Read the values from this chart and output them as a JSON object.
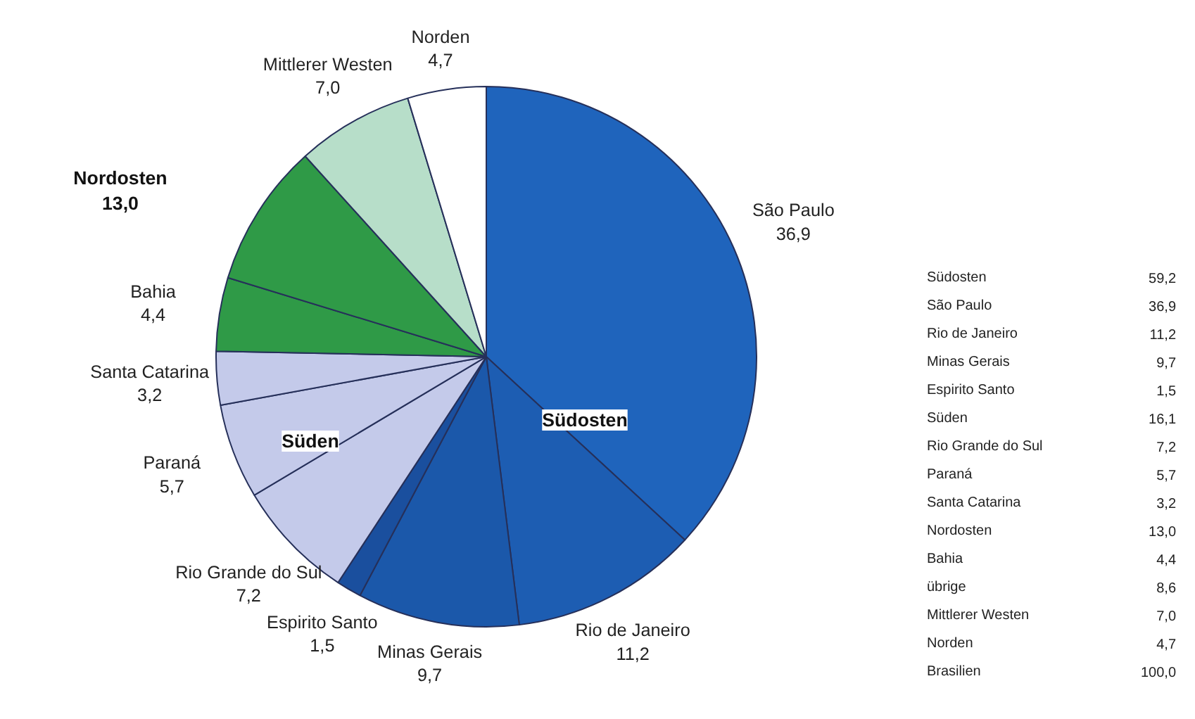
{
  "chart_data": [
    {
      "type": "pie",
      "categories": [
        "São Paulo",
        "Rio de Janeiro",
        "Minas Gerais",
        "Espirito Santo",
        "Rio Grande do Sul",
        "Paraná",
        "Santa Catarina",
        "Bahia",
        null,
        "Mittlerer Westen",
        "Norden"
      ],
      "values": [
        36.9,
        11.2,
        9.7,
        1.5,
        7.2,
        5.7,
        3.2,
        4.4,
        8.6,
        7.0,
        4.7
      ],
      "value_labels": [
        "36,9",
        "11,2",
        "9,7",
        "1,5",
        "7,2",
        "5,7",
        "3,2",
        "4,4",
        null,
        "7,0",
        "4,7"
      ],
      "colors": [
        "#1f64bc",
        "#1d5db2",
        "#1b58aa",
        "#1a4f9e",
        "#c4caea",
        "#c4caea",
        "#c4caea",
        "#2f9a47",
        "#2f9a47",
        "#b7dec9",
        "#ffffff"
      ],
      "annotations": [
        "Südosten",
        "Süden",
        "Nordosten\n13,0"
      ]
    },
    {
      "type": "other",
      "annotations": [
        "Südosten\t59,2",
        "São Paulo\t36,9",
        "Rio de Janeiro\t11,2",
        "Minas Gerais\t9,7",
        "Espirito Santo\t1,5",
        "Süden\t16,1",
        "Rio Grande do Sul\t7,2",
        "Paraná\t5,7",
        "Santa Catarina\t3,2",
        "Nordosten\t13,0",
        "Bahia\t4,4",
        "übrige\t8,6",
        "Mittlerer Westen\t7,0",
        "Norden\t4,7",
        "Brasilien\t100,0"
      ]
    }
  ]
}
